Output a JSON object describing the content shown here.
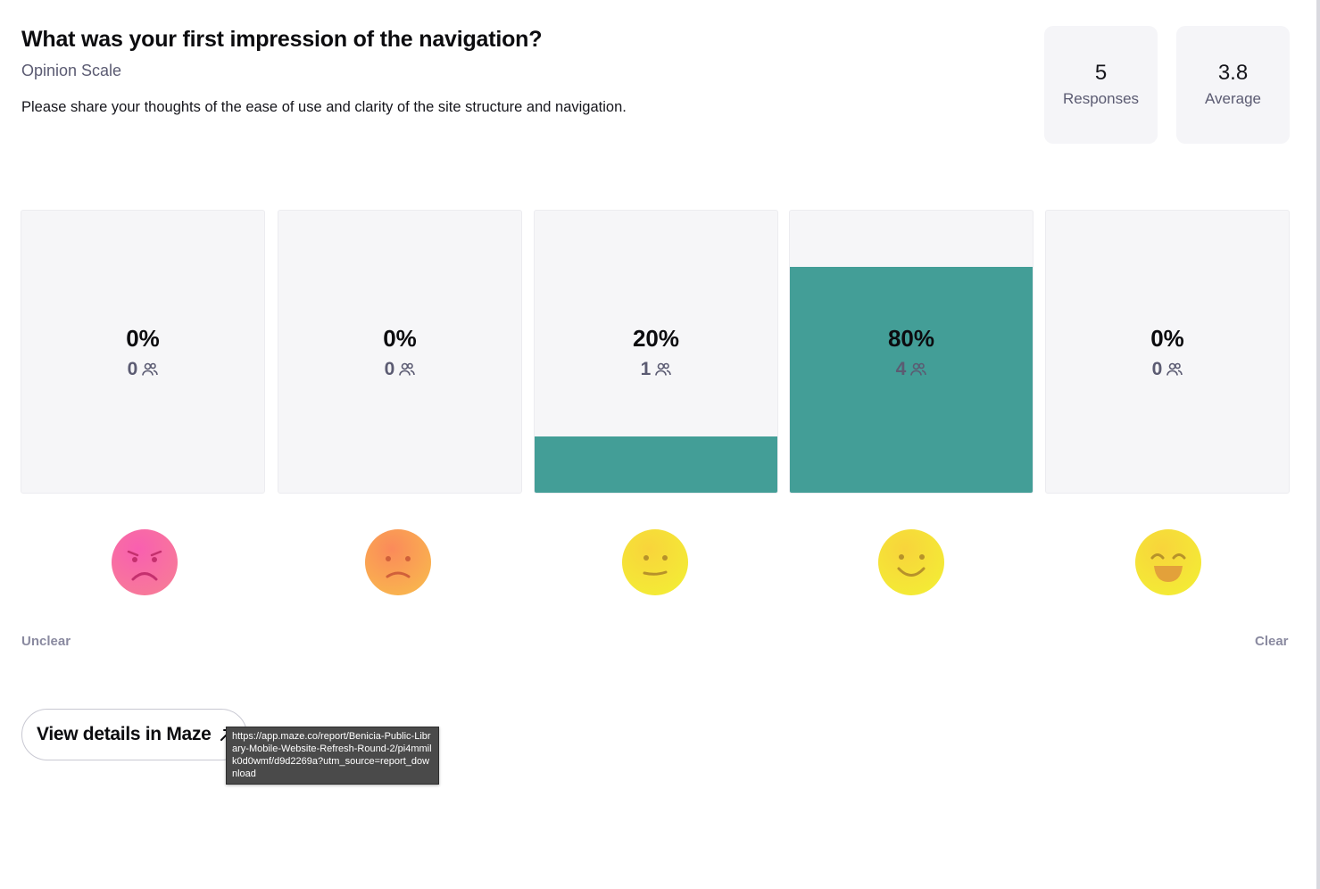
{
  "question": {
    "title": "What was your first impression of the navigation?",
    "type_label": "Opinion Scale",
    "description": "Please share your thoughts of the ease of use and clarity of the site structure and navigation."
  },
  "stats": {
    "responses": {
      "value": "5",
      "label": "Responses"
    },
    "average": {
      "value": "3.8",
      "label": "Average"
    }
  },
  "scale": {
    "fill_color": "#439e97",
    "options": [
      {
        "percent_label": "0%",
        "count": "0",
        "share": 0,
        "emoji": "sad-face-icon"
      },
      {
        "percent_label": "0%",
        "count": "0",
        "share": 0,
        "emoji": "frown-face-icon"
      },
      {
        "percent_label": "20%",
        "count": "1",
        "share": 0.2,
        "emoji": "neutral-face-icon"
      },
      {
        "percent_label": "80%",
        "count": "4",
        "share": 0.8,
        "emoji": "smile-face-icon"
      },
      {
        "percent_label": "0%",
        "count": "0",
        "share": 0,
        "emoji": "grin-face-icon"
      }
    ],
    "min_label": "Unclear",
    "max_label": "Clear"
  },
  "details_button": {
    "label": "View details in Maze",
    "icon": "external-arrow-icon"
  },
  "tooltip": {
    "text": "https://app.maze.co/report/Benicia-Public-Library-Mobile-Website-Refresh-Round-2/pi4mmilk0d0wmf/d9d2269a?utm_source=report_download"
  }
}
